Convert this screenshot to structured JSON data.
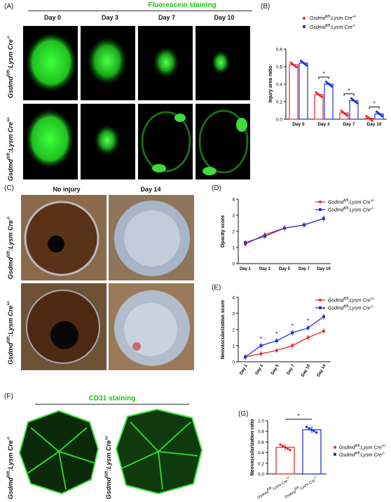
{
  "panels": {
    "A": {
      "letter": "(A)",
      "title": "Fluorescein staining",
      "columns": [
        "Day 0",
        "Day 3",
        "Day 7",
        "Day 10"
      ],
      "row_labels": [
        {
          "gene": "Gsdmd",
          "sup1": "fl/fl",
          "mid": ":Lysm Cre",
          "sup2": "-/-"
        },
        {
          "gene": "Gsdmd",
          "sup1": "fl/fl",
          "mid": ":Lysm Cre",
          "sup2": "+/-"
        }
      ]
    },
    "C": {
      "letter": "(C)",
      "columns": [
        "No injury",
        "Day 14"
      ],
      "row_labels": [
        {
          "gene": "Gsdmd",
          "sup1": "fl/fl",
          "mid": ":Lysm Cre",
          "sup2": "-/-"
        },
        {
          "gene": "Gsdmd",
          "sup1": "fl/fl",
          "mid": ":Lysm Cre",
          "sup2": "+/-"
        }
      ]
    },
    "F": {
      "letter": "(F)",
      "title": "CD31 staining",
      "row_labels": [
        {
          "gene": "Gsdmd",
          "sup1": "fl/fl",
          "mid": ":Lysm Cre",
          "sup2": "-/-"
        },
        {
          "gene": "Gsdmd",
          "sup1": "fl/fl",
          "mid": ":Lysm Cre",
          "sup2": "+/-"
        }
      ]
    }
  },
  "colors": {
    "red": "#e8262d",
    "blue": "#1f35d6",
    "green_title": "#19c219"
  },
  "legend": {
    "red": {
      "gene": "Gsdmd",
      "sup1": "fl/fl",
      "mid": ":Lysm Cre",
      "sup2": "+/-"
    },
    "blue": {
      "gene": "Gsdmd",
      "sup1": "fl/fl",
      "mid": ":Lysm Cre",
      "sup2": "-/-"
    }
  },
  "chart_data": [
    {
      "id": "B",
      "letter": "(B)",
      "type": "bar",
      "ylabel": "Injury area ratio",
      "ylim": [
        0,
        0.8
      ],
      "yticks": [
        "0.0",
        "0.2",
        "0.4",
        "0.6",
        "0.8"
      ],
      "categories": [
        "Day 0",
        "Day 3",
        "Day 7",
        "Day 10"
      ],
      "series": [
        {
          "name": "Gsdmd fl/fl:Lysm Cre +/-",
          "values": [
            0.62,
            0.28,
            0.07,
            0.01
          ]
        },
        {
          "name": "Gsdmd fl/fl:Lysm Cre -/-",
          "values": [
            0.64,
            0.4,
            0.21,
            0.06
          ]
        }
      ],
      "significance": [
        "",
        "*",
        "*",
        "*"
      ],
      "legend_position": "top-right"
    },
    {
      "id": "D",
      "letter": "(D)",
      "type": "line",
      "ylabel": "Opacity score",
      "ylim": [
        0,
        4
      ],
      "yticks": [
        "0",
        "1",
        "2",
        "3",
        "4"
      ],
      "categories": [
        "Day 1",
        "Day 3",
        "Day 5",
        "Day 7",
        "Day 10"
      ],
      "series": [
        {
          "name": "Gsdmd fl/fl:Lysm Cre +/-",
          "values": [
            1.2,
            1.8,
            2.2,
            2.4,
            2.8
          ]
        },
        {
          "name": "Gsdmd fl/fl:Lysm Cre -/-",
          "values": [
            1.3,
            1.7,
            2.2,
            2.4,
            2.8
          ]
        }
      ],
      "legend_position": "top-right"
    },
    {
      "id": "E",
      "letter": "(E)",
      "type": "line",
      "ylabel": "Neovascularization score",
      "ylim": [
        0,
        4
      ],
      "yticks": [
        "0",
        "1",
        "2",
        "3",
        "4"
      ],
      "categories": [
        "Day 1",
        "Day 3",
        "Day 5",
        "Day 7",
        "Day 10",
        "Day 14"
      ],
      "series": [
        {
          "name": "Gsdmd fl/fl:Lysm Cre +/-",
          "values": [
            0.3,
            0.5,
            0.7,
            1.0,
            1.5,
            1.9
          ]
        },
        {
          "name": "Gsdmd fl/fl:Lysm Cre -/-",
          "values": [
            0.3,
            1.0,
            1.3,
            1.8,
            2.1,
            2.8
          ]
        }
      ],
      "significance": [
        "",
        "*",
        "*",
        "*",
        "*",
        "*"
      ],
      "legend_position": "top-right"
    },
    {
      "id": "G",
      "letter": "(G)",
      "type": "bar",
      "ylabel": "Neovascularization ratio",
      "ylim": [
        0,
        1.0
      ],
      "yticks": [
        "0.0",
        "0.2",
        "0.4",
        "0.6",
        "0.8",
        "1.0"
      ],
      "categories": [
        "Gsdmd fl/fl:Lysm Cre +/-",
        "Gsdmd fl/fl:Lysm Cre -/-"
      ],
      "values": [
        0.5,
        0.83
      ],
      "significance": "*",
      "legend_position": "right"
    }
  ]
}
